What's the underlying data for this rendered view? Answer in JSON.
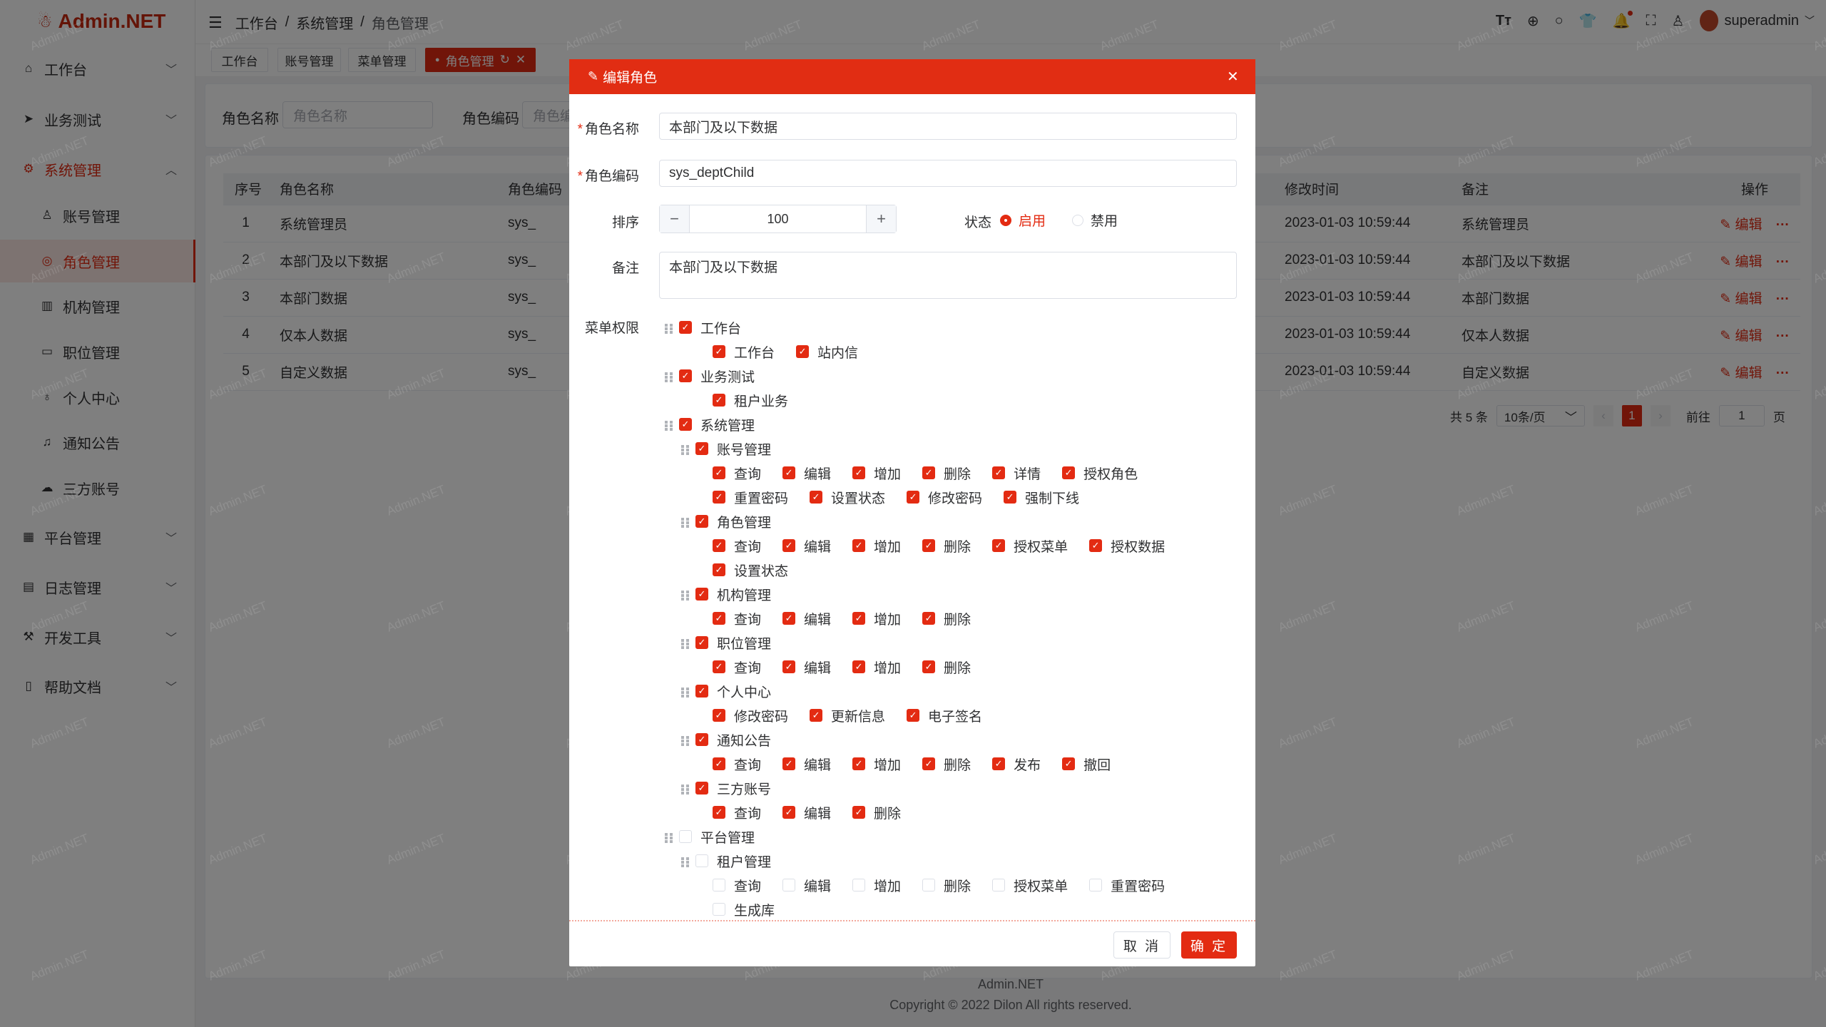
{
  "app": {
    "logo": "Admin.NET",
    "watermark": "Admin.NET"
  },
  "sidebar": {
    "items": [
      {
        "label": "工作台",
        "icon": "home-icon",
        "chev": "﹀"
      },
      {
        "label": "业务测试",
        "icon": "send-icon",
        "chev": "﹀"
      },
      {
        "label": "系统管理",
        "icon": "gear-icon",
        "chev": "︿"
      },
      {
        "label": "账号管理",
        "icon": "user-icon"
      },
      {
        "label": "角色管理",
        "icon": "role-icon"
      },
      {
        "label": "机构管理",
        "icon": "org-icon"
      },
      {
        "label": "职位管理",
        "icon": "position-icon"
      },
      {
        "label": "个人中心",
        "icon": "person-icon"
      },
      {
        "label": "通知公告",
        "icon": "bell-icon"
      },
      {
        "label": "三方账号",
        "icon": "chat-icon"
      },
      {
        "label": "平台管理",
        "icon": "grid-icon",
        "chev": "﹀"
      },
      {
        "label": "日志管理",
        "icon": "log-icon",
        "chev": "﹀"
      },
      {
        "label": "开发工具",
        "icon": "tool-icon",
        "chev": "﹀"
      },
      {
        "label": "帮助文档",
        "icon": "doc-icon",
        "chev": "﹀"
      }
    ]
  },
  "header": {
    "breadcrumb": [
      "工作台",
      "系统管理",
      "角色管理"
    ],
    "separator": "/",
    "user": "superadmin",
    "icons": [
      "font-size-icon",
      "language-icon",
      "search-icon",
      "theme-icon",
      "bell-icon",
      "fullscreen-icon",
      "user-icon"
    ]
  },
  "tabs": [
    {
      "label": "工作台"
    },
    {
      "label": "账号管理"
    },
    {
      "label": "菜单管理"
    },
    {
      "label": "角色管理",
      "active": true
    }
  ],
  "search": {
    "name_label": "角色名称",
    "name_placeholder": "角色名称",
    "code_label": "角色编码",
    "code_placeholder": "角色编码"
  },
  "table": {
    "columns": [
      "序号",
      "角色名称",
      "角色编码",
      "修改时间",
      "备注",
      "操作"
    ],
    "rows": [
      {
        "index": "1",
        "name": "系统管理员",
        "code": "sys_",
        "time": "2023-01-03 10:59:44",
        "remark": "系统管理员"
      },
      {
        "index": "2",
        "name": "本部门及以下数据",
        "code": "sys_",
        "time": "2023-01-03 10:59:44",
        "remark": "本部门及以下数据"
      },
      {
        "index": "3",
        "name": "本部门数据",
        "code": "sys_",
        "time": "2023-01-03 10:59:44",
        "remark": "本部门数据"
      },
      {
        "index": "4",
        "name": "仅本人数据",
        "code": "sys_",
        "time": "2023-01-03 10:59:44",
        "remark": "仅本人数据"
      },
      {
        "index": "5",
        "name": "自定义数据",
        "code": "sys_",
        "time": "2023-01-03 10:59:44",
        "remark": "自定义数据"
      }
    ],
    "edit_label": "编辑",
    "more_label": "···"
  },
  "pagination": {
    "total": "共 5 条",
    "page_size": "10条/页",
    "current": "1",
    "goto_label": "前往",
    "goto_value": "1",
    "page_suffix": "页"
  },
  "footer": {
    "brand": "Admin.NET",
    "copyright": "Copyright © 2022 Dilon All rights reserved."
  },
  "modal": {
    "title": "编辑角色",
    "name_label": "角色名称",
    "name_value": "本部门及以下数据",
    "code_label": "角色编码",
    "code_value": "sys_deptChild",
    "order_label": "排序",
    "order_value": "100",
    "status_label": "状态",
    "status_options": [
      "启用",
      "禁用"
    ],
    "status_selected": "启用",
    "remark_label": "备注",
    "remark_value": "本部门及以下数据",
    "menu_label": "菜单权限",
    "cancel": "取 消",
    "confirm": "确 定",
    "tree": [
      {
        "label": "工作台",
        "checked": true,
        "leaves": [
          {
            "label": "工作台",
            "checked": true
          },
          {
            "label": "站内信",
            "checked": true
          }
        ]
      },
      {
        "label": "业务测试",
        "checked": true,
        "leaves": [
          {
            "label": "租户业务",
            "checked": true
          }
        ]
      },
      {
        "label": "系统管理",
        "checked": true,
        "children": [
          {
            "label": "账号管理",
            "checked": true,
            "leaves": [
              {
                "label": "查询",
                "checked": true
              },
              {
                "label": "编辑",
                "checked": true
              },
              {
                "label": "增加",
                "checked": true
              },
              {
                "label": "删除",
                "checked": true
              },
              {
                "label": "详情",
                "checked": true
              },
              {
                "label": "授权角色",
                "checked": true
              },
              {
                "label": "重置密码",
                "checked": true
              },
              {
                "label": "设置状态",
                "checked": true
              },
              {
                "label": "修改密码",
                "checked": true
              },
              {
                "label": "强制下线",
                "checked": true
              }
            ]
          },
          {
            "label": "角色管理",
            "checked": true,
            "leaves": [
              {
                "label": "查询",
                "checked": true
              },
              {
                "label": "编辑",
                "checked": true
              },
              {
                "label": "增加",
                "checked": true
              },
              {
                "label": "删除",
                "checked": true
              },
              {
                "label": "授权菜单",
                "checked": true
              },
              {
                "label": "授权数据",
                "checked": true
              },
              {
                "label": "设置状态",
                "checked": true
              }
            ]
          },
          {
            "label": "机构管理",
            "checked": true,
            "leaves": [
              {
                "label": "查询",
                "checked": true
              },
              {
                "label": "编辑",
                "checked": true
              },
              {
                "label": "增加",
                "checked": true
              },
              {
                "label": "删除",
                "checked": true
              }
            ]
          },
          {
            "label": "职位管理",
            "checked": true,
            "leaves": [
              {
                "label": "查询",
                "checked": true
              },
              {
                "label": "编辑",
                "checked": true
              },
              {
                "label": "增加",
                "checked": true
              },
              {
                "label": "删除",
                "checked": true
              }
            ]
          },
          {
            "label": "个人中心",
            "checked": true,
            "leaves": [
              {
                "label": "修改密码",
                "checked": true
              },
              {
                "label": "更新信息",
                "checked": true
              },
              {
                "label": "电子签名",
                "checked": true
              }
            ]
          },
          {
            "label": "通知公告",
            "checked": true,
            "leaves": [
              {
                "label": "查询",
                "checked": true
              },
              {
                "label": "编辑",
                "checked": true
              },
              {
                "label": "增加",
                "checked": true
              },
              {
                "label": "删除",
                "checked": true
              },
              {
                "label": "发布",
                "checked": true
              },
              {
                "label": "撤回",
                "checked": true
              }
            ]
          },
          {
            "label": "三方账号",
            "checked": true,
            "leaves": [
              {
                "label": "查询",
                "checked": true
              },
              {
                "label": "编辑",
                "checked": true
              },
              {
                "label": "删除",
                "checked": true
              }
            ]
          }
        ]
      },
      {
        "label": "平台管理",
        "checked": false,
        "children": [
          {
            "label": "租户管理",
            "checked": false,
            "leaves": [
              {
                "label": "查询",
                "checked": false
              },
              {
                "label": "编辑",
                "checked": false
              },
              {
                "label": "增加",
                "checked": false
              },
              {
                "label": "删除",
                "checked": false
              },
              {
                "label": "授权菜单",
                "checked": false
              },
              {
                "label": "重置密码",
                "checked": false
              },
              {
                "label": "生成库",
                "checked": false
              }
            ]
          }
        ]
      }
    ]
  },
  "colors": {
    "primary": "#e32b12",
    "modal_header": "#e12d13"
  }
}
